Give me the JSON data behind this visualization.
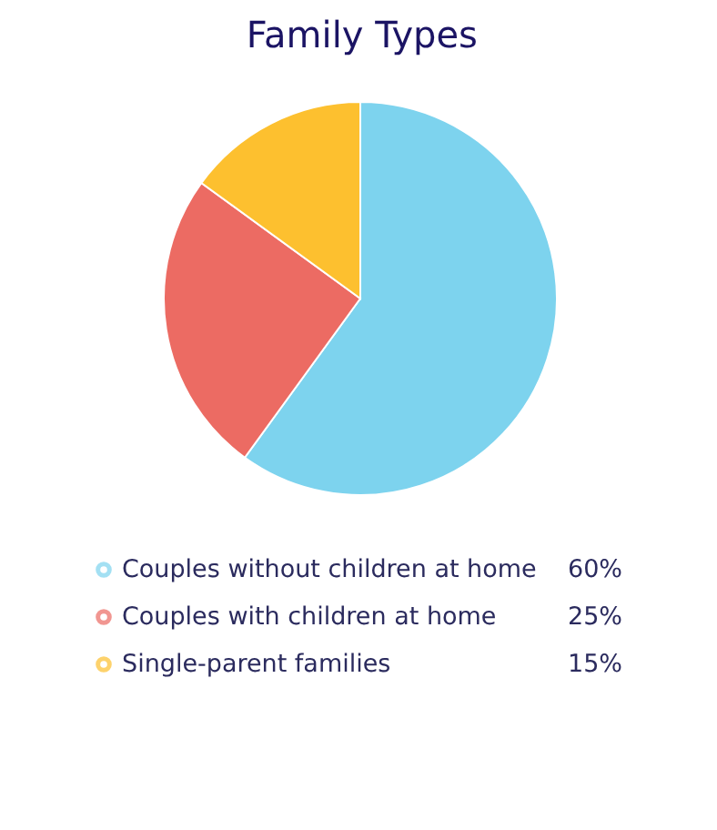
{
  "chart_data": {
    "type": "pie",
    "title": "Family Types",
    "categories": [
      "Couples without children at home",
      "Couples with children at home",
      "Single-parent families"
    ],
    "values": [
      60,
      25,
      15
    ],
    "colors": [
      "#7dd3ee",
      "#ec6b63",
      "#fdc02f"
    ],
    "value_labels": [
      "60%",
      "25%",
      "15%"
    ],
    "legend": "bottom"
  }
}
